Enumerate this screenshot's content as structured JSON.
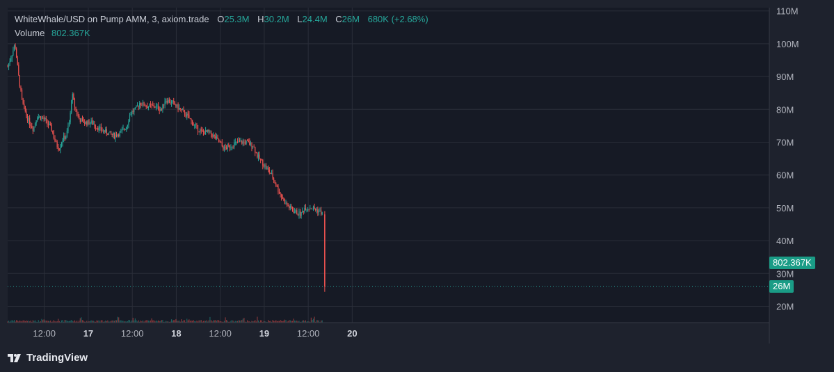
{
  "legend": {
    "symbol_text": "WhiteWhale/USD on Pump AMM, 3, axiom.trade",
    "ohlc": [
      {
        "key": "O",
        "value": "25.3M"
      },
      {
        "key": "H",
        "value": "30.2M"
      },
      {
        "key": "L",
        "value": "24.4M"
      },
      {
        "key": "C",
        "value": "26M"
      }
    ],
    "change": "680K (+2.68%)",
    "volume_label": "Volume",
    "volume_value": "802.367K"
  },
  "price_tags": {
    "volume_tag": "802.367K",
    "price_tag": "26M"
  },
  "footer": {
    "brand": "TradingView"
  },
  "colors": {
    "background": "#1e222d",
    "up": "#26a69a",
    "down": "#ef5350",
    "grid": "#2a2e39",
    "text": "#b2b5be"
  },
  "chart_data": {
    "type": "candlestick",
    "y_axis": {
      "ticks": [
        20,
        30,
        40,
        50,
        60,
        70,
        80,
        90,
        100,
        110
      ],
      "tick_labels": [
        "20M",
        "30M",
        "40M",
        "50M",
        "60M",
        "70M",
        "80M",
        "90M",
        "100M",
        "110M"
      ],
      "unit": "M",
      "position": "right"
    },
    "x_axis": {
      "tick_labels": [
        "12:00",
        "17",
        "12:00",
        "18",
        "12:00",
        "19",
        "12:00",
        "20"
      ],
      "bold_labels": [
        "17",
        "18",
        "19",
        "20"
      ]
    },
    "grid": true,
    "current_price_line": 26,
    "series": [
      {
        "points": [
          [
            "16 02:00",
            93
          ],
          [
            "16 03:30",
            98
          ],
          [
            "16 04:00",
            100
          ],
          [
            "16 05:00",
            90
          ],
          [
            "16 06:00",
            82
          ],
          [
            "16 07:30",
            77
          ],
          [
            "16 09:00",
            74
          ],
          [
            "16 10:00",
            78
          ],
          [
            "16 12:00",
            77
          ],
          [
            "16 14:00",
            74
          ],
          [
            "16 15:00",
            70
          ],
          [
            "16 16:00",
            68
          ],
          [
            "16 17:00",
            71
          ],
          [
            "16 18:00",
            72
          ],
          [
            "16 19:00",
            77
          ],
          [
            "16 19:30",
            85
          ],
          [
            "16 20:30",
            80
          ],
          [
            "16 21:30",
            77
          ],
          [
            "16 23:00",
            76
          ],
          [
            "17 01:00",
            76
          ],
          [
            "17 03:00",
            74
          ],
          [
            "17 05:00",
            73
          ],
          [
            "17 07:00",
            72
          ],
          [
            "17 09:00",
            73
          ],
          [
            "17 10:30",
            75
          ],
          [
            "17 11:30",
            79
          ],
          [
            "17 13:00",
            80
          ],
          [
            "17 14:00",
            82
          ],
          [
            "17 16:00",
            81
          ],
          [
            "17 18:00",
            81
          ],
          [
            "17 20:00",
            80
          ],
          [
            "17 21:00",
            83
          ],
          [
            "17 23:00",
            82
          ],
          [
            "18 01:00",
            80
          ],
          [
            "18 03:00",
            78
          ],
          [
            "18 05:00",
            75
          ],
          [
            "18 07:00",
            73
          ],
          [
            "18 09:00",
            73
          ],
          [
            "18 11:00",
            71
          ],
          [
            "18 13:00",
            68
          ],
          [
            "18 15:00",
            69
          ],
          [
            "18 17:00",
            70
          ],
          [
            "18 19:00",
            70
          ],
          [
            "18 21:00",
            69
          ],
          [
            "18 22:00",
            66
          ],
          [
            "19 00:00",
            63
          ],
          [
            "19 02:00",
            60
          ],
          [
            "19 04:00",
            55
          ],
          [
            "19 06:00",
            51
          ],
          [
            "19 08:00",
            49
          ],
          [
            "19 10:00",
            48
          ],
          [
            "19 11:00",
            50
          ],
          [
            "19 13:00",
            50
          ],
          [
            "19 15:00",
            49
          ],
          [
            "19 16:00",
            48
          ],
          [
            "19 16:30",
            26
          ]
        ]
      }
    ]
  }
}
